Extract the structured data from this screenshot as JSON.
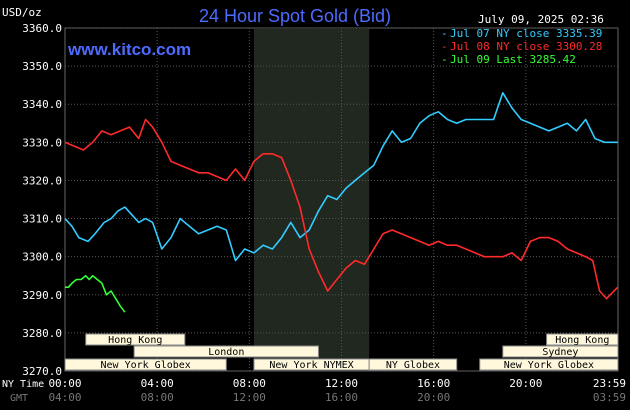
{
  "header": {
    "unit": "USD/oz",
    "title": "24 Hour Spot Gold (Bid)",
    "website": "www.kitco.com",
    "datetime": "July 09, 2025 02:36"
  },
  "axis_labels": {
    "ny_time": "NY Time",
    "gmt": "GMT"
  },
  "legend": [
    {
      "text": "Jul 07 NY close 3335.39",
      "color": "#33ccff"
    },
    {
      "text": "Jul 08 NY close 3300.28",
      "color": "#ff2a2a"
    },
    {
      "text": "Jul 09 Last 3285.42",
      "color": "#33ff33"
    }
  ],
  "sessions": [
    {
      "name": "Hong Kong",
      "start": 0.9,
      "end": 5.2
    },
    {
      "name": "London",
      "start": 3.0,
      "end": 11.0
    },
    {
      "name": "New York Globex",
      "start": 0.0,
      "end": 7.0
    },
    {
      "name": "New York NYMEX",
      "start": 8.2,
      "end": 13.2
    },
    {
      "name": "NY Globex",
      "start": 13.2,
      "end": 17.0
    },
    {
      "name": "Hong Kong",
      "start": 20.9,
      "end": 24.0
    },
    {
      "name": "Sydney",
      "start": 19.0,
      "end": 24.0
    },
    {
      "name": "New York Globex",
      "start": 18.0,
      "end": 24.0
    }
  ],
  "chart_data": {
    "type": "line",
    "ylabel": "USD/oz",
    "ylim": [
      3270,
      3360
    ],
    "xlim": [
      0,
      24
    ],
    "yticks": [
      "3360.0",
      "3350.0",
      "3340.0",
      "3330.0",
      "3320.0",
      "3310.0",
      "3300.0",
      "3290.0",
      "3280.0",
      "3270.0"
    ],
    "xticks_ny": [
      "00:00",
      "04:00",
      "08:00",
      "12:00",
      "16:00",
      "20:00",
      "23:59"
    ],
    "xticks_gmt": [
      "04:00",
      "08:00",
      "12:00",
      "16:00",
      "20:00",
      "03:59"
    ],
    "shaded_region": [
      8.2,
      13.2
    ],
    "grid": true,
    "series": [
      {
        "name": "Jul 07 NY close 3335.39",
        "color": "#33ccff",
        "x": [
          0,
          0.3,
          0.6,
          1.0,
          1.3,
          1.7,
          2.0,
          2.3,
          2.6,
          2.9,
          3.2,
          3.5,
          3.8,
          4.2,
          4.6,
          5.0,
          5.4,
          5.8,
          6.2,
          6.6,
          7.0,
          7.4,
          7.8,
          8.2,
          8.6,
          9.0,
          9.4,
          9.8,
          10.2,
          10.6,
          11.0,
          11.4,
          11.8,
          12.2,
          12.6,
          13.0,
          13.4,
          13.8,
          14.2,
          14.6,
          15.0,
          15.4,
          15.8,
          16.2,
          16.6,
          17.0,
          17.4,
          17.8,
          18.2,
          18.6,
          19.0,
          19.4,
          19.8,
          20.2,
          20.6,
          21.0,
          21.4,
          21.8,
          22.2,
          22.6,
          23.0,
          23.4,
          23.99
        ],
        "y": [
          3310,
          3308,
          3305,
          3304,
          3306,
          3309,
          3310,
          3312,
          3313,
          3311,
          3309,
          3310,
          3309,
          3302,
          3305,
          3310,
          3308,
          3306,
          3307,
          3308,
          3307,
          3299,
          3302,
          3301,
          3303,
          3302,
          3305,
          3309,
          3305,
          3307,
          3312,
          3316,
          3315,
          3318,
          3320,
          3322,
          3324,
          3329,
          3333,
          3330,
          3331,
          3335,
          3337,
          3338,
          3336,
          3335,
          3336,
          3336,
          3336,
          3336,
          3343,
          3339,
          3336,
          3335,
          3334,
          3333,
          3334,
          3335,
          3333,
          3336,
          3331,
          3330,
          3330
        ]
      },
      {
        "name": "Jul 08 NY close 3300.28",
        "color": "#ff2a2a",
        "x": [
          0,
          0.4,
          0.8,
          1.2,
          1.6,
          2.0,
          2.4,
          2.8,
          3.2,
          3.5,
          3.8,
          4.2,
          4.6,
          5.0,
          5.4,
          5.8,
          6.2,
          6.6,
          7.0,
          7.4,
          7.8,
          8.2,
          8.6,
          9.0,
          9.4,
          9.8,
          10.2,
          10.6,
          11.0,
          11.4,
          11.8,
          12.2,
          12.6,
          13.0,
          13.4,
          13.8,
          14.2,
          14.6,
          15.0,
          15.4,
          15.8,
          16.2,
          16.6,
          17.0,
          17.4,
          17.8,
          18.2,
          18.6,
          19.0,
          19.4,
          19.8,
          20.2,
          20.6,
          21.0,
          21.4,
          21.8,
          22.2,
          22.6,
          22.9,
          23.2,
          23.5,
          23.99
        ],
        "y": [
          3330,
          3329,
          3328,
          3330,
          3333,
          3332,
          3333,
          3334,
          3331,
          3336,
          3334,
          3330,
          3325,
          3324,
          3323,
          3322,
          3322,
          3321,
          3320,
          3323,
          3320,
          3325,
          3327,
          3327,
          3326,
          3320,
          3313,
          3302,
          3296,
          3291,
          3294,
          3297,
          3299,
          3298,
          3302,
          3306,
          3307,
          3306,
          3305,
          3304,
          3303,
          3304,
          3303,
          3303,
          3302,
          3301,
          3300,
          3300,
          3300,
          3301,
          3299,
          3304,
          3305,
          3305,
          3304,
          3302,
          3301,
          3300,
          3299,
          3291,
          3289,
          3292
        ]
      },
      {
        "name": "Jul 09 Last 3285.42",
        "color": "#33ff33",
        "x": [
          0,
          0.15,
          0.3,
          0.5,
          0.7,
          0.9,
          1.05,
          1.2,
          1.4,
          1.6,
          1.8,
          2.0,
          2.2,
          2.4,
          2.6
        ],
        "y": [
          3292,
          3292,
          3293,
          3294,
          3294,
          3295,
          3294,
          3295,
          3294,
          3293,
          3290,
          3291,
          3289,
          3287,
          3285.42
        ]
      }
    ]
  }
}
